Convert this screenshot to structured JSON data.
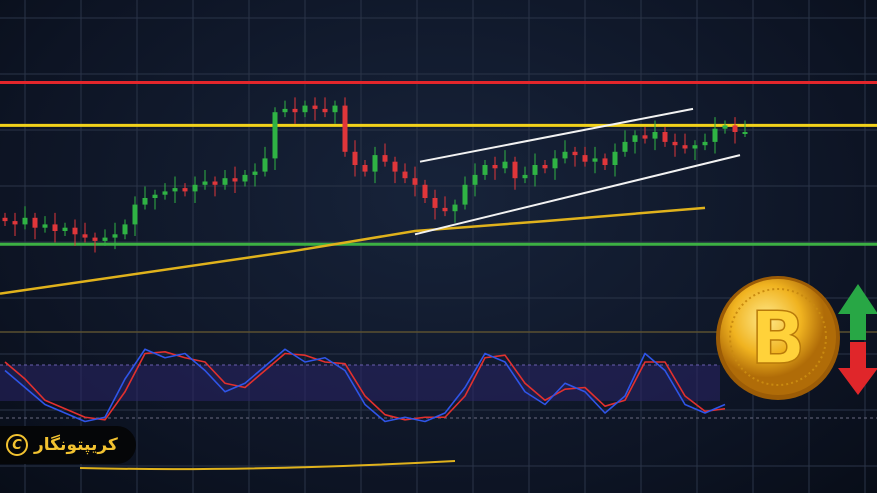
{
  "brand": {
    "name": "کریپتونگار",
    "mark": "C"
  },
  "coin": {
    "symbol": "B"
  },
  "colors": {
    "bull": "#2fb344",
    "bear": "#e0363a",
    "resistance": "#e3262b",
    "level": "#f2d21a",
    "support": "#3cb043",
    "ma": "#e0b21c",
    "channel": "#f2f2f2",
    "osc_fast": "#2f55e8",
    "osc_slow": "#e2302e"
  },
  "chart_data": {
    "type": "candlestick",
    "title": "",
    "ylim": [
      0,
      100
    ],
    "closes": [
      33,
      32,
      34,
      31,
      32,
      30,
      31,
      29,
      28,
      27,
      28,
      29,
      32,
      38,
      40,
      41,
      42,
      43,
      42,
      44,
      45,
      44,
      46,
      45,
      47,
      48,
      52,
      66,
      67,
      66,
      68,
      67,
      66,
      68,
      54,
      50,
      48,
      53,
      51,
      48,
      46,
      44,
      40,
      37,
      36,
      38,
      44,
      47,
      50,
      49,
      51,
      46,
      47,
      50,
      49,
      52,
      54,
      53,
      51,
      52,
      50,
      54,
      57,
      59,
      58,
      60,
      57,
      56,
      55,
      56,
      57,
      61,
      62,
      60,
      60
    ],
    "horizontal_levels": [
      {
        "name": "resistance",
        "price": 75
      },
      {
        "name": "level",
        "price": 62
      },
      {
        "name": "support",
        "price": 26
      }
    ],
    "moving_average": {
      "index": [
        -0.5,
        29,
        41,
        54,
        70
      ],
      "price": [
        11,
        24,
        30,
        33,
        37
      ]
    },
    "channel": {
      "upper": {
        "index": [
          41.5,
          68.8
        ],
        "price": [
          51,
          67
        ]
      },
      "lower": {
        "index": [
          41,
          73.5
        ],
        "price": [
          29,
          53
        ]
      }
    },
    "oscillator": {
      "ylim": [
        0,
        100
      ],
      "index_step": 2,
      "fast": [
        70,
        50,
        30,
        20,
        10,
        15,
        60,
        95,
        85,
        90,
        70,
        45,
        55,
        75,
        95,
        80,
        85,
        70,
        30,
        10,
        15,
        10,
        20,
        50,
        90,
        80,
        45,
        30,
        55,
        45,
        20,
        40,
        90,
        70,
        30,
        20,
        30
      ],
      "slow": [
        80,
        60,
        35,
        25,
        15,
        12,
        45,
        90,
        92,
        85,
        80,
        55,
        50,
        70,
        90,
        88,
        80,
        78,
        40,
        18,
        12,
        15,
        15,
        40,
        85,
        88,
        55,
        35,
        48,
        50,
        28,
        35,
        80,
        80,
        40,
        22,
        25
      ]
    }
  }
}
